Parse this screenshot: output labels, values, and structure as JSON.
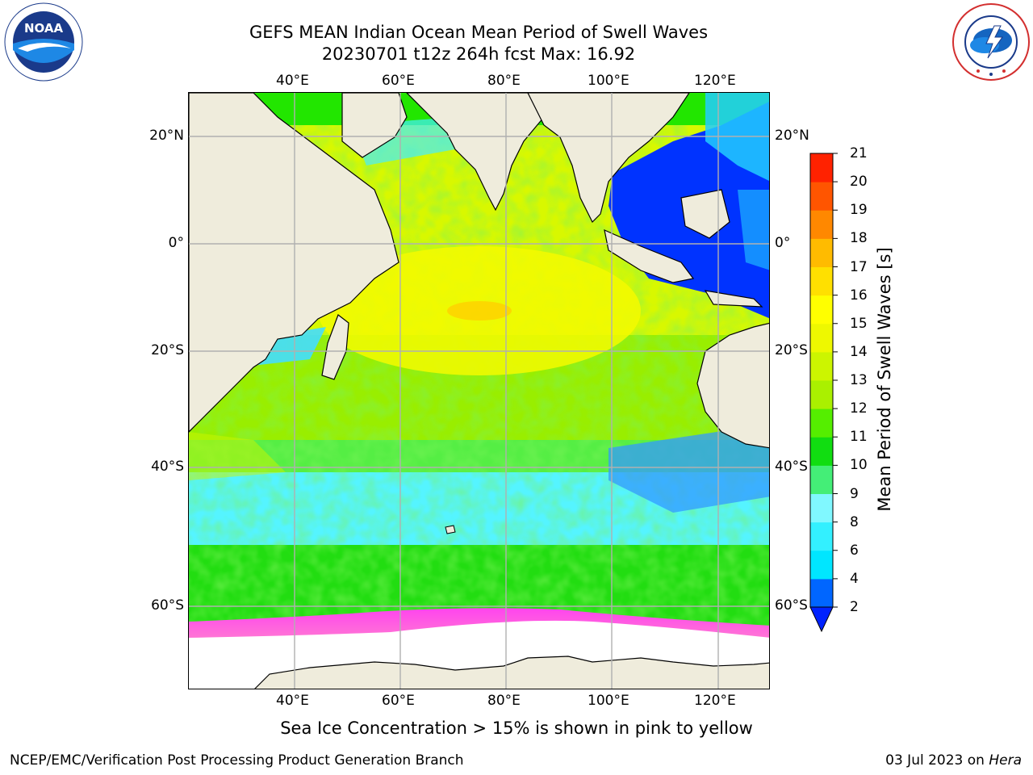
{
  "title": {
    "line1": "GEFS MEAN Indian Ocean Mean Period of Swell Waves",
    "line2": "20230701 t12z 264h fcst   Max: 16.92"
  },
  "logos": {
    "left": {
      "name": "noaa-logo",
      "text": "NOAA",
      "ring_text": "NATIONAL OCEANIC AND ATMOSPHERIC ADMINISTRATION · U.S. DEPARTMENT OF COMMERCE"
    },
    "right": {
      "name": "nws-logo",
      "ring_text": "NATIONAL WEATHER SERVICE"
    }
  },
  "map": {
    "lon_labels": [
      "40°E",
      "60°E",
      "80°E",
      "100°E",
      "120°E"
    ],
    "lat_labels": [
      "20°N",
      "0°",
      "20°S",
      "40°S",
      "60°S"
    ],
    "land_color": "#efecdc",
    "ice_color": "#ffffff",
    "grid_color": "#b0b0b0"
  },
  "colorbar": {
    "title": "Mean Period of Swell Waves [s]",
    "ticks": [
      "2",
      "4",
      "6",
      "8",
      "9",
      "10",
      "11",
      "12",
      "13",
      "14",
      "15",
      "16",
      "17",
      "18",
      "19",
      "20",
      "21"
    ],
    "colors": [
      "#0066ff",
      "#00e6ff",
      "#33f0ff",
      "#80f8ff",
      "#44ee77",
      "#11dd11",
      "#55ee00",
      "#aaf000",
      "#ccf500",
      "#eef800",
      "#ffff00",
      "#ffe000",
      "#ffbb00",
      "#ff8800",
      "#ff5500",
      "#ff2200"
    ],
    "under_color": "#0022ff"
  },
  "footer": {
    "note": "Sea Ice Concentration > 15% is shown in pink to yellow",
    "credit_left": "NCEP/EMC/Verification Post Processing Product Generation Branch",
    "credit_date": "03 Jul 2023 on ",
    "credit_machine": "Hera"
  }
}
